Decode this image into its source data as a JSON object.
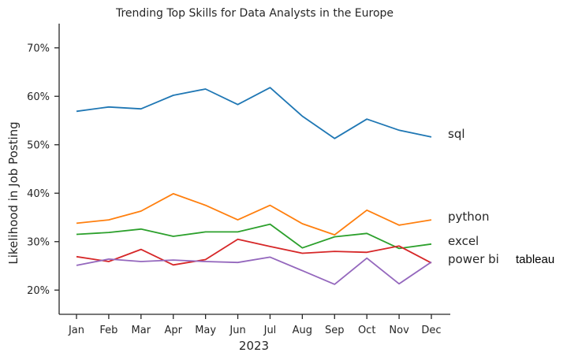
{
  "chart_data": {
    "type": "line",
    "title": "Trending Top Skills for Data Analysts in the Europe",
    "xlabel": "2023",
    "ylabel": "Likelihood in Job Posting",
    "categories": [
      "Jan",
      "Feb",
      "Mar",
      "Apr",
      "May",
      "Jun",
      "Jul",
      "Aug",
      "Sep",
      "Oct",
      "Nov",
      "Dec"
    ],
    "ylim": [
      15,
      75
    ],
    "yticks": [
      20,
      30,
      40,
      50,
      60,
      70
    ],
    "ytick_labels": [
      "20%",
      "30%",
      "40%",
      "50%",
      "60%",
      "70%"
    ],
    "grid": false,
    "legend": "none",
    "series": [
      {
        "name": "sql",
        "color": "#1f77b4",
        "values": [
          56.9,
          57.8,
          57.4,
          60.2,
          61.5,
          58.3,
          61.8,
          55.9,
          51.3,
          55.3,
          53.0,
          51.6
        ]
      },
      {
        "name": "python",
        "color": "#ff7f0e",
        "values": [
          33.8,
          34.5,
          36.3,
          39.9,
          37.5,
          34.5,
          37.5,
          33.7,
          31.4,
          36.5,
          33.4,
          34.5
        ]
      },
      {
        "name": "excel",
        "color": "#2ca02c",
        "values": [
          31.5,
          31.9,
          32.6,
          31.1,
          32.0,
          32.0,
          33.6,
          28.7,
          31.0,
          31.7,
          28.6,
          29.5
        ]
      },
      {
        "name": "power bi",
        "color": "#d62728",
        "values": [
          26.9,
          25.9,
          28.4,
          25.2,
          26.3,
          30.5,
          29.0,
          27.6,
          28.0,
          27.8,
          29.1,
          25.6
        ]
      },
      {
        "name": "tableau",
        "color": "#9467bd",
        "values": [
          25.1,
          26.4,
          25.9,
          26.2,
          25.9,
          25.7,
          26.8,
          24.0,
          21.2,
          26.6,
          21.3,
          25.8
        ]
      }
    ]
  }
}
